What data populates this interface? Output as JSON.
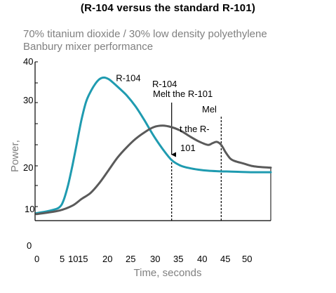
{
  "chart_data": {
    "type": "line",
    "title": "(R-104  versus the standard  R-101)",
    "subtitle_lines": [
      "70% titanium dioxide  / 30% low  density polyethylene",
      "Banbury  mixer performance"
    ],
    "xlabel": "Time, seconds",
    "ylabel": "Power,",
    "x_tick_labels": [
      "0",
      "5",
      "10",
      "15",
      "20",
      "25",
      "30",
      "35",
      "40",
      "45",
      "50"
    ],
    "y_tick_labels": [
      "40",
      "30",
      "20",
      "10",
      "0"
    ],
    "xlim": [
      0,
      52
    ],
    "ylim": [
      10,
      40
    ],
    "grid": false,
    "series": [
      {
        "name": "R-104",
        "color": "#1f9bb0",
        "x": [
          0,
          3,
          5,
          6,
          7,
          8,
          9,
          10,
          11,
          12,
          13,
          14,
          15,
          16,
          17,
          18,
          20,
          22,
          24,
          26,
          28,
          30,
          32,
          34,
          36,
          38,
          40,
          44,
          48,
          52
        ],
        "y": [
          10.5,
          11.0,
          11.6,
          13.0,
          16.0,
          20.0,
          24.5,
          29.0,
          32.5,
          34.5,
          36.0,
          37.0,
          37.3,
          37.0,
          36.3,
          35.5,
          33.8,
          31.6,
          28.8,
          25.8,
          23.2,
          21.0,
          19.9,
          19.4,
          19.1,
          18.9,
          18.8,
          18.7,
          18.6,
          18.6
        ]
      },
      {
        "name": "R-101",
        "color": "#5a5a5a",
        "x": [
          0,
          5,
          8,
          10,
          12,
          14,
          16,
          18,
          20,
          22,
          24,
          26,
          28,
          30,
          32,
          34,
          36,
          38,
          39,
          40,
          41,
          42,
          43,
          44,
          46,
          48,
          50,
          52
        ],
        "y": [
          10.3,
          11.0,
          12.0,
          13.3,
          14.5,
          16.5,
          19.0,
          21.5,
          23.5,
          25.2,
          26.5,
          27.5,
          27.8,
          27.5,
          26.8,
          25.7,
          24.7,
          24.0,
          24.3,
          24.6,
          24.0,
          22.5,
          21.3,
          20.8,
          20.3,
          19.8,
          19.6,
          19.5
        ]
      }
    ],
    "markers": [
      {
        "x": 30,
        "style": "solid-arrow",
        "label_lines": [
          "R-104",
          "Melt the R-101"
        ]
      },
      {
        "x": 41,
        "style": "dashed",
        "label_lines": [
          "Mel",
          "t the  R-",
          "101"
        ]
      }
    ],
    "series_labels": [
      {
        "text": "R-104",
        "x": 17,
        "y": 37
      }
    ]
  }
}
